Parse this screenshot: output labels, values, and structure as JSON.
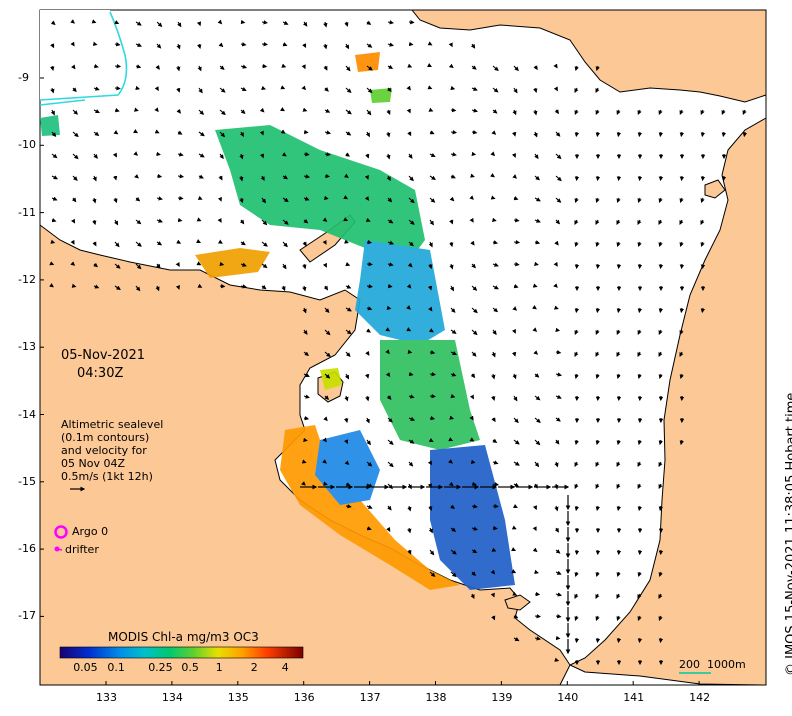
{
  "date_text": "05-Nov-2021",
  "time_text": "04:30Z",
  "altimetry_note": {
    "line1": "Altimetric sealevel",
    "line2": "(0.1m contours)",
    "line3": "and velocity for",
    "line4": "05 Nov 04Z",
    "line5": "0.5m/s (1kt 12h)"
  },
  "legend": {
    "argo_label": "Argo 0",
    "argo_color": "#ff00ff",
    "drifter_label": "drifter",
    "drifter_color": "#ff00ff"
  },
  "colorbar": {
    "title": "MODIS Chl-a mg/m3 OC3",
    "ticks": [
      "0.05",
      "0.1",
      "0.25",
      "0.5",
      "1",
      "2",
      "4"
    ],
    "colors": [
      "#1a0070",
      "#0025c8",
      "#0070e0",
      "#00b4e6",
      "#00c890",
      "#30c840",
      "#a0e020",
      "#f0e000",
      "#ffa000",
      "#ff5000",
      "#c80000",
      "#800000"
    ]
  },
  "scale_bar": {
    "text": "200  1000m",
    "color": "#00c8a0"
  },
  "credit": "© IMOS 15-Nov-2021 11:38:05 Hobart time",
  "axes": {
    "x_ticks": [
      "133",
      "134",
      "135",
      "136",
      "137",
      "138",
      "139",
      "140",
      "141",
      "142"
    ],
    "y_ticks": [
      "-9",
      "-10",
      "-11",
      "-12",
      "-13",
      "-14",
      "-15",
      "-16",
      "-17"
    ]
  },
  "colors": {
    "land": "#fbc896",
    "sea": "#ffffff",
    "coastline": "#000000",
    "contour_cyan": "#30d8e0"
  }
}
